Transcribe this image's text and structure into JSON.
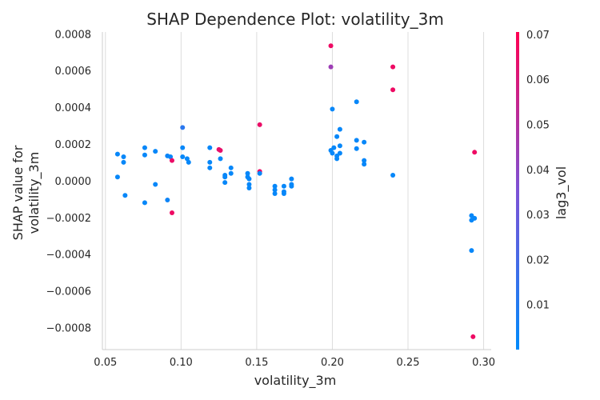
{
  "chart_data": {
    "type": "scatter",
    "title": "SHAP Dependence Plot: volatility_3m",
    "xlabel": "volatility_3m",
    "ylabel": [
      "SHAP value for",
      "volatility_3m"
    ],
    "xlim": [
      0.048,
      0.305
    ],
    "ylim": [
      -0.00092,
      0.00081
    ],
    "x_ticks": [
      0.05,
      0.1,
      0.15,
      0.2,
      0.25,
      0.3
    ],
    "x_tick_labels": [
      "0.05",
      "0.10",
      "0.15",
      "0.20",
      "0.25",
      "0.30"
    ],
    "y_ticks": [
      0.0008,
      0.0006,
      0.0004,
      0.0002,
      0.0,
      -0.0002,
      -0.0004,
      -0.0006,
      -0.0008
    ],
    "y_tick_labels": [
      "0.0008",
      "0.0006",
      "0.0004",
      "0.0002",
      "0.0000",
      "−0.0002",
      "−0.0004",
      "−0.0006",
      "−0.0008"
    ],
    "grid": true,
    "colorbar": {
      "label": "lag3_vol",
      "range": [
        0.0,
        0.0705
      ],
      "ticks": [
        0.01,
        0.02,
        0.03,
        0.04,
        0.05,
        0.06,
        0.07
      ],
      "tick_labels": [
        "0.01",
        "0.02",
        "0.03",
        "0.04",
        "0.05",
        "0.06",
        "0.07"
      ],
      "color_low": "#008afb",
      "color_mid": "#7c52d6",
      "color_high": "#ff0052"
    },
    "points": [
      {
        "x": 0.058,
        "y": 0.000145,
        "c": 0.002
      },
      {
        "x": 0.058,
        "y": 2e-05,
        "c": 0.002
      },
      {
        "x": 0.062,
        "y": 0.00013,
        "c": 0.002
      },
      {
        "x": 0.062,
        "y": 0.0001,
        "c": 0.002
      },
      {
        "x": 0.063,
        "y": -8e-05,
        "c": 0.002
      },
      {
        "x": 0.076,
        "y": 0.00018,
        "c": 0.002
      },
      {
        "x": 0.076,
        "y": 0.00014,
        "c": 0.002
      },
      {
        "x": 0.076,
        "y": -0.00012,
        "c": 0.002
      },
      {
        "x": 0.083,
        "y": 0.00016,
        "c": 0.002
      },
      {
        "x": 0.083,
        "y": -2e-05,
        "c": 0.002
      },
      {
        "x": 0.091,
        "y": 0.000135,
        "c": 0.003
      },
      {
        "x": 0.091,
        "y": -0.000105,
        "c": 0.004
      },
      {
        "x": 0.093,
        "y": 0.00013,
        "c": 0.002
      },
      {
        "x": 0.094,
        "y": 0.00011,
        "c": 0.065
      },
      {
        "x": 0.094,
        "y": -0.000175,
        "c": 0.066
      },
      {
        "x": 0.101,
        "y": 0.00029,
        "c": 0.012
      },
      {
        "x": 0.101,
        "y": 0.00018,
        "c": 0.002
      },
      {
        "x": 0.101,
        "y": 0.00013,
        "c": 0.002
      },
      {
        "x": 0.104,
        "y": 0.00012,
        "c": 0.002
      },
      {
        "x": 0.105,
        "y": 0.0001,
        "c": 0.002
      },
      {
        "x": 0.119,
        "y": 0.00018,
        "c": 0.002
      },
      {
        "x": 0.119,
        "y": 0.0001,
        "c": 0.002
      },
      {
        "x": 0.119,
        "y": 7e-05,
        "c": 0.002
      },
      {
        "x": 0.125,
        "y": 0.00017,
        "c": 0.064
      },
      {
        "x": 0.126,
        "y": 0.000165,
        "c": 0.064
      },
      {
        "x": 0.126,
        "y": 0.00012,
        "c": 0.002
      },
      {
        "x": 0.129,
        "y": 3e-05,
        "c": 0.002
      },
      {
        "x": 0.129,
        "y": 2e-05,
        "c": 0.002
      },
      {
        "x": 0.129,
        "y": -1e-05,
        "c": 0.002
      },
      {
        "x": 0.133,
        "y": 7e-05,
        "c": 0.002
      },
      {
        "x": 0.133,
        "y": 4e-05,
        "c": 0.002
      },
      {
        "x": 0.144,
        "y": 4e-05,
        "c": 0.002
      },
      {
        "x": 0.144,
        "y": 2e-05,
        "c": 0.002
      },
      {
        "x": 0.145,
        "y": 1e-05,
        "c": 0.002
      },
      {
        "x": 0.145,
        "y": -2e-05,
        "c": 0.002
      },
      {
        "x": 0.145,
        "y": -4e-05,
        "c": 0.002
      },
      {
        "x": 0.152,
        "y": 0.000305,
        "c": 0.065
      },
      {
        "x": 0.152,
        "y": 5e-05,
        "c": 0.066
      },
      {
        "x": 0.152,
        "y": 4e-05,
        "c": 0.002
      },
      {
        "x": 0.162,
        "y": -3e-05,
        "c": 0.002
      },
      {
        "x": 0.162,
        "y": -5e-05,
        "c": 0.002
      },
      {
        "x": 0.162,
        "y": -7e-05,
        "c": 0.002
      },
      {
        "x": 0.168,
        "y": -3e-05,
        "c": 0.002
      },
      {
        "x": 0.168,
        "y": -6e-05,
        "c": 0.002
      },
      {
        "x": 0.168,
        "y": -7e-05,
        "c": 0.002
      },
      {
        "x": 0.173,
        "y": 1e-05,
        "c": 0.002
      },
      {
        "x": 0.173,
        "y": -2e-05,
        "c": 0.002
      },
      {
        "x": 0.173,
        "y": -3e-05,
        "c": 0.002
      },
      {
        "x": 0.199,
        "y": 0.000735,
        "c": 0.066
      },
      {
        "x": 0.199,
        "y": 0.00062,
        "c": 0.044
      },
      {
        "x": 0.2,
        "y": 0.00039,
        "c": 0.002
      },
      {
        "x": 0.199,
        "y": 0.000165,
        "c": 0.002
      },
      {
        "x": 0.2,
        "y": 0.00015,
        "c": 0.002
      },
      {
        "x": 0.201,
        "y": 0.00018,
        "c": 0.002
      },
      {
        "x": 0.203,
        "y": 0.00024,
        "c": 0.002
      },
      {
        "x": 0.203,
        "y": 0.000135,
        "c": 0.002
      },
      {
        "x": 0.203,
        "y": 0.00012,
        "c": 0.002
      },
      {
        "x": 0.205,
        "y": 0.00028,
        "c": 0.002
      },
      {
        "x": 0.205,
        "y": 0.00019,
        "c": 0.002
      },
      {
        "x": 0.205,
        "y": 0.00015,
        "c": 0.002
      },
      {
        "x": 0.216,
        "y": 0.00043,
        "c": 0.002
      },
      {
        "x": 0.216,
        "y": 0.00022,
        "c": 0.002
      },
      {
        "x": 0.216,
        "y": 0.000175,
        "c": 0.002
      },
      {
        "x": 0.221,
        "y": 0.00021,
        "c": 0.002
      },
      {
        "x": 0.221,
        "y": 0.00011,
        "c": 0.002
      },
      {
        "x": 0.221,
        "y": 9e-05,
        "c": 0.002
      },
      {
        "x": 0.24,
        "y": 0.00062,
        "c": 0.066
      },
      {
        "x": 0.24,
        "y": 0.000495,
        "c": 0.066
      },
      {
        "x": 0.24,
        "y": 3e-05,
        "c": 0.002
      },
      {
        "x": 0.294,
        "y": 0.000155,
        "c": 0.066
      },
      {
        "x": 0.292,
        "y": -0.00019,
        "c": 0.002
      },
      {
        "x": 0.292,
        "y": -0.000215,
        "c": 0.002
      },
      {
        "x": 0.294,
        "y": -0.000205,
        "c": 0.002
      },
      {
        "x": 0.292,
        "y": -0.00038,
        "c": 0.002
      },
      {
        "x": 0.293,
        "y": -0.00085,
        "c": 0.066
      }
    ]
  }
}
